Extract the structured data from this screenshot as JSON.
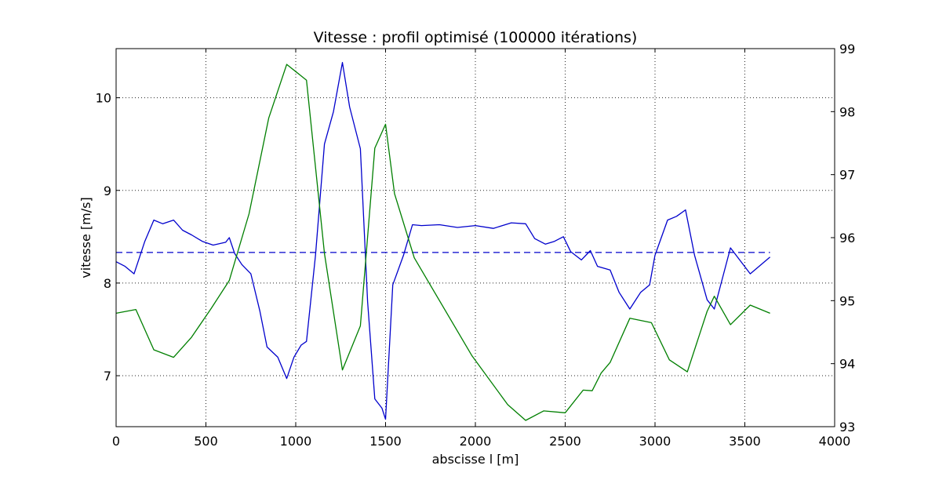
{
  "chart_data": {
    "type": "line",
    "title": "Vitesse : profil optimisé (100000 itérations)",
    "xlabel": "abscisse l [m]",
    "ylabel": "vitesse [m/s]",
    "y2label": "",
    "xlim": [
      0,
      4000
    ],
    "ylim": [
      6.45,
      10.53
    ],
    "y2lim": [
      93,
      99
    ],
    "x_ticks": [
      0,
      500,
      1000,
      1500,
      2000,
      2500,
      3000,
      3500,
      4000
    ],
    "y_ticks": [
      7,
      8,
      9,
      10
    ],
    "y2_ticks": [
      93,
      94,
      95,
      96,
      97,
      98,
      99
    ],
    "grid": true,
    "series": [
      {
        "axis": "left",
        "color": "#0000cc",
        "style": "solid",
        "x": [
          0,
          50,
          100,
          160,
          210,
          260,
          320,
          370,
          420,
          480,
          540,
          610,
          630,
          660,
          700,
          750,
          800,
          840,
          900,
          950,
          990,
          1030,
          1060,
          1110,
          1160,
          1210,
          1260,
          1300,
          1360,
          1400,
          1440,
          1480,
          1500,
          1540,
          1600,
          1650,
          1700,
          1800,
          1900,
          2000,
          2100,
          2200,
          2280,
          2330,
          2390,
          2440,
          2490,
          2530,
          2590,
          2640,
          2680,
          2750,
          2800,
          2860,
          2920,
          2970,
          3000,
          3070,
          3120,
          3170,
          3220,
          3290,
          3330,
          3420,
          3530,
          3640
        ],
        "y": [
          8.23,
          8.18,
          8.1,
          8.45,
          8.68,
          8.64,
          8.68,
          8.57,
          8.52,
          8.45,
          8.41,
          8.44,
          8.49,
          8.32,
          8.2,
          8.1,
          7.7,
          7.31,
          7.2,
          6.97,
          7.2,
          7.33,
          7.37,
          8.3,
          9.5,
          9.85,
          10.38,
          9.9,
          9.45,
          7.8,
          6.75,
          6.65,
          6.53,
          7.98,
          8.3,
          8.63,
          8.62,
          8.63,
          8.6,
          8.62,
          8.59,
          8.65,
          8.64,
          8.48,
          8.42,
          8.45,
          8.5,
          8.34,
          8.25,
          8.35,
          8.18,
          8.14,
          7.9,
          7.72,
          7.9,
          7.98,
          8.3,
          8.68,
          8.72,
          8.79,
          8.3,
          7.82,
          7.72,
          8.38,
          8.1,
          8.28
        ]
      },
      {
        "axis": "left",
        "color": "#0000cc",
        "style": "dashed",
        "x": [
          0,
          3640
        ],
        "y": [
          8.33,
          8.33
        ]
      },
      {
        "axis": "right",
        "color": "#007f00",
        "style": "solid",
        "x": [
          0,
          110,
          210,
          320,
          420,
          530,
          630,
          740,
          850,
          950,
          1060,
          1160,
          1260,
          1360,
          1440,
          1500,
          1550,
          1660,
          1980,
          2180,
          2280,
          2380,
          2500,
          2600,
          2650,
          2700,
          2750,
          2860,
          2980,
          3080,
          3180,
          3290,
          3330,
          3420,
          3530,
          3640
        ],
        "y": [
          94.8,
          94.86,
          94.22,
          94.1,
          94.42,
          94.88,
          95.32,
          96.38,
          97.9,
          98.75,
          98.5,
          95.75,
          93.9,
          94.6,
          97.42,
          97.8,
          96.7,
          95.68,
          94.13,
          93.35,
          93.1,
          93.25,
          93.22,
          93.58,
          93.57,
          93.85,
          94.02,
          94.72,
          94.65,
          94.06,
          93.87,
          94.83,
          95.07,
          94.62,
          94.93,
          94.8
        ]
      }
    ]
  }
}
